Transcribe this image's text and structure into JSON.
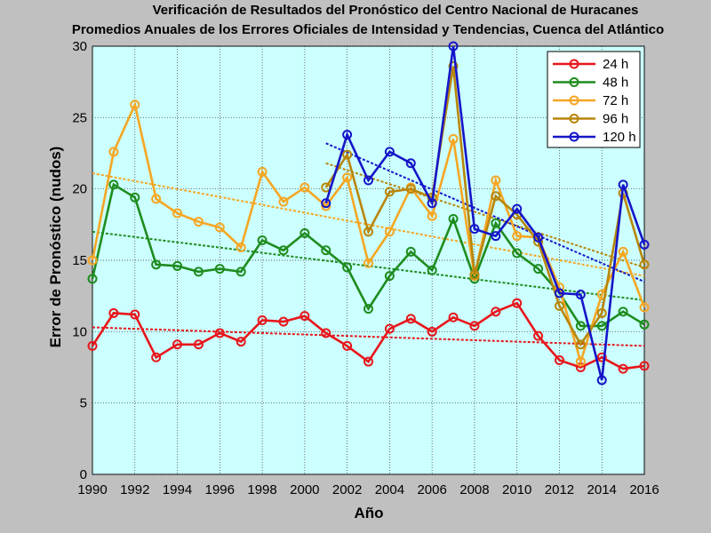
{
  "chart_data": {
    "type": "line",
    "title": "Verificación de Resultados del Pronóstico del Centro Nacional de Huracanes",
    "subtitle": "Promedios Anuales de los Errores Oficiales de Intensidad y Tendencias, Cuenca del Atlántico",
    "xlabel": "Año",
    "ylabel": "Error de Pronóstico (nudos)",
    "xlim": [
      1990,
      2016
    ],
    "ylim": [
      0,
      30
    ],
    "x_ticks": [
      "1990",
      "1992",
      "1994",
      "1996",
      "1998",
      "2000",
      "2002",
      "2004",
      "2006",
      "2008",
      "2010",
      "2012",
      "2014",
      "2016"
    ],
    "y_ticks": [
      "0",
      "5",
      "10",
      "15",
      "20",
      "25",
      "30"
    ],
    "grid": true,
    "legend_position": "top-right",
    "series": [
      {
        "name": "24 h",
        "color": "#e8161b",
        "x": [
          1990,
          1991,
          1992,
          1993,
          1994,
          1995,
          1996,
          1997,
          1998,
          1999,
          2000,
          2001,
          2002,
          2003,
          2004,
          2005,
          2006,
          2007,
          2008,
          2009,
          2010,
          2011,
          2012,
          2013,
          2014,
          2015,
          2016
        ],
        "values": [
          9.0,
          11.3,
          11.2,
          8.2,
          9.1,
          9.1,
          9.9,
          9.3,
          10.8,
          10.7,
          11.1,
          9.9,
          9.0,
          7.9,
          10.2,
          10.9,
          10.0,
          11.0,
          10.4,
          11.4,
          12.0,
          9.7,
          8.0,
          7.5,
          8.2,
          7.4,
          7.6
        ],
        "trend": [
          10.3,
          9.0
        ]
      },
      {
        "name": "48 h",
        "color": "#1e8c1e",
        "x": [
          1990,
          1991,
          1992,
          1993,
          1994,
          1995,
          1996,
          1997,
          1998,
          1999,
          2000,
          2001,
          2002,
          2003,
          2004,
          2005,
          2006,
          2007,
          2008,
          2009,
          2010,
          2011,
          2012,
          2013,
          2014,
          2015,
          2016
        ],
        "values": [
          13.7,
          20.3,
          19.4,
          14.7,
          14.6,
          14.2,
          14.4,
          14.2,
          16.4,
          15.7,
          16.9,
          15.7,
          14.5,
          11.6,
          13.9,
          15.6,
          14.3,
          17.9,
          13.7,
          17.6,
          15.5,
          14.4,
          12.7,
          10.4,
          10.4,
          11.4,
          10.5
        ],
        "trend": [
          17.0,
          12.2
        ]
      },
      {
        "name": "72 h",
        "color": "#f5a623",
        "x": [
          1990,
          1991,
          1992,
          1993,
          1994,
          1995,
          1996,
          1997,
          1998,
          1999,
          2000,
          2001,
          2002,
          2003,
          2004,
          2005,
          2006,
          2007,
          2008,
          2009,
          2010,
          2011,
          2012,
          2013,
          2014,
          2015,
          2016
        ],
        "values": [
          15.0,
          22.6,
          25.9,
          19.3,
          18.3,
          17.7,
          17.3,
          15.9,
          21.2,
          19.1,
          20.1,
          18.8,
          20.8,
          14.8,
          17.0,
          20.1,
          18.1,
          23.5,
          13.9,
          20.6,
          16.7,
          16.6,
          13.1,
          7.9,
          12.6,
          15.6,
          11.7
        ],
        "trend": [
          21.1,
          13.9
        ]
      },
      {
        "name": "96 h",
        "color": "#b8860b",
        "x": [
          2001,
          2002,
          2003,
          2004,
          2005,
          2006,
          2007,
          2008,
          2009,
          2010,
          2011,
          2012,
          2013,
          2014,
          2015,
          2016
        ],
        "values": [
          20.1,
          22.4,
          17.0,
          19.8,
          20.0,
          19.4,
          28.6,
          14.0,
          19.5,
          18.2,
          16.3,
          11.8,
          9.1,
          11.3,
          19.7,
          14.7
        ],
        "trend": [
          21.8,
          14.5
        ]
      },
      {
        "name": "120 h",
        "color": "#1515c8",
        "x": [
          2001,
          2002,
          2003,
          2004,
          2005,
          2006,
          2007,
          2008,
          2009,
          2010,
          2011,
          2012,
          2013,
          2014,
          2015,
          2016
        ],
        "values": [
          19.0,
          23.8,
          20.6,
          22.6,
          21.8,
          19.0,
          30.0,
          17.2,
          16.7,
          18.6,
          16.6,
          12.7,
          12.6,
          6.6,
          20.3,
          16.1
        ],
        "trend": [
          23.2,
          13.5
        ]
      }
    ]
  }
}
